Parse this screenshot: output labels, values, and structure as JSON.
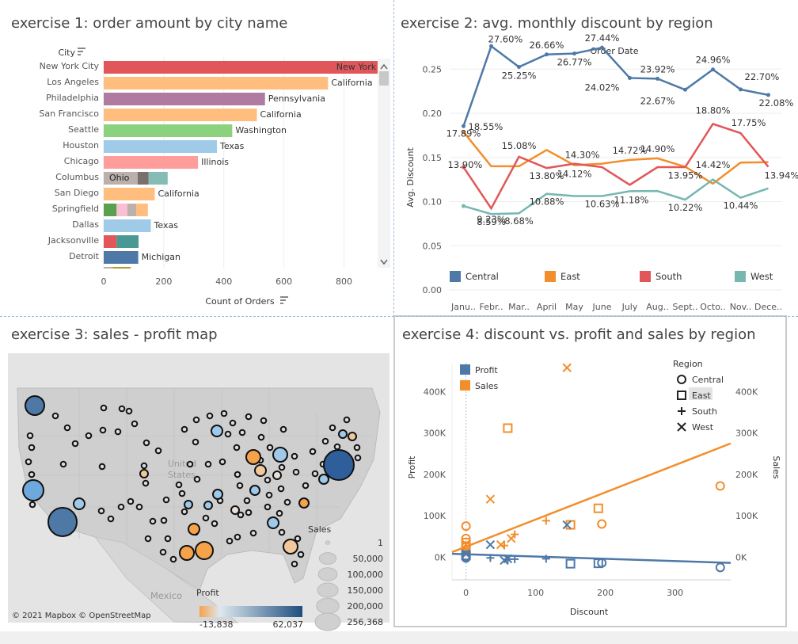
{
  "panels": {
    "p1_title": "exercise 1: order amount by city name",
    "p2_title": "exercise 2: avg. monthly discount by region",
    "p3_title": "exercise 3: sales - profit map",
    "p4_title": "exercise 4: discount vs. profit and sales by region"
  },
  "colors": {
    "central": "#4e79a7",
    "east": "#f28e2b",
    "south": "#e15759",
    "west": "#76b7b2",
    "divider": "#9bb8d6"
  },
  "icons": {
    "sort": "sort-icon",
    "scroll_up": "chevron-up-icon",
    "scroll_down": "chevron-down-icon"
  },
  "chart_data": [
    {
      "type": "bar",
      "orientation": "horizontal",
      "title": "exercise 1: order amount by city name",
      "header_label": "City",
      "xlabel": "Count of Orders",
      "xticks": [
        "0",
        "200",
        "400",
        "600",
        "800"
      ],
      "xlim": [
        0,
        920
      ],
      "categories": [
        "New York City",
        "Los Angeles",
        "Philadelphia",
        "San Francisco",
        "Seattle",
        "Houston",
        "Chicago",
        "Columbus",
        "San Diego",
        "Springfield",
        "Dallas",
        "Jacksonville",
        "Detroit"
      ],
      "bars": [
        {
          "city": "New York City",
          "segments": [
            {
              "value": 915,
              "color": "#e15759",
              "state": "New York"
            }
          ]
        },
        {
          "city": "Los Angeles",
          "segments": [
            {
              "value": 747,
              "color": "#ffbe7d",
              "state": "California"
            }
          ]
        },
        {
          "city": "Philadelphia",
          "segments": [
            {
              "value": 537,
              "color": "#b07aa1",
              "state": "Pennsylvania"
            }
          ]
        },
        {
          "city": "San Francisco",
          "segments": [
            {
              "value": 510,
              "color": "#ffbe7d",
              "state": "California"
            }
          ]
        },
        {
          "city": "Seattle",
          "segments": [
            {
              "value": 428,
              "color": "#8cd17d",
              "state": "Washington"
            }
          ]
        },
        {
          "city": "Houston",
          "segments": [
            {
              "value": 377,
              "color": "#a0cbe8",
              "state": "Texas"
            }
          ]
        },
        {
          "city": "Chicago",
          "segments": [
            {
              "value": 314,
              "color": "#ff9d9a",
              "state": "Illinois"
            }
          ]
        },
        {
          "city": "Columbus",
          "segments": [
            {
              "value": 113,
              "color": "#bab0ac",
              "state": "Ohio"
            },
            {
              "value": 36,
              "color": "#79706e",
              "state": ""
            },
            {
              "value": 64,
              "color": "#86bcb6",
              "state": ""
            }
          ]
        },
        {
          "city": "San Diego",
          "segments": [
            {
              "value": 170,
              "color": "#ffbe7d",
              "state": "California"
            }
          ]
        },
        {
          "city": "Springfield",
          "segments": [
            {
              "value": 43,
              "color": "#59a14f",
              "state": ""
            },
            {
              "value": 36,
              "color": "#fabfd2",
              "state": ""
            },
            {
              "value": 29,
              "color": "#bab0ac",
              "state": ""
            },
            {
              "value": 39,
              "color": "#ffbe7d",
              "state": ""
            }
          ]
        },
        {
          "city": "Dallas",
          "segments": [
            {
              "value": 157,
              "color": "#a0cbe8",
              "state": "Texas"
            }
          ]
        },
        {
          "city": "Jacksonville",
          "segments": [
            {
              "value": 43,
              "color": "#e15759",
              "state": ""
            },
            {
              "value": 73,
              "color": "#499894",
              "state": ""
            }
          ]
        },
        {
          "city": "Detroit",
          "segments": [
            {
              "value": 115,
              "color": "#4e79a7",
              "state": "Michigan"
            }
          ]
        }
      ]
    },
    {
      "type": "line",
      "title": "exercise 2: avg. monthly discount by region",
      "header_label": "Order Date",
      "ylabel": "Avg. Discount",
      "ylim": [
        0.0,
        0.27
      ],
      "yticks": [
        "0.00",
        "0.05",
        "0.10",
        "0.15",
        "0.20",
        "0.25"
      ],
      "categories": [
        "Janu..",
        "Febr..",
        "Mar..",
        "April",
        "May",
        "June",
        "July",
        "Aug..",
        "Sept..",
        "Octo..",
        "Nov..",
        "Dece.."
      ],
      "legend": [
        "Central",
        "East",
        "South",
        "West"
      ],
      "series": [
        {
          "name": "Central",
          "values": [
            0.1855,
            0.276,
            0.2525,
            0.2666,
            0.2677,
            0.2744,
            0.24,
            0.2392,
            0.2267,
            0.2496,
            0.227,
            0.2208
          ]
        },
        {
          "name": "East",
          "values": [
            0.1789,
            0.14,
            0.14,
            0.1585,
            0.1412,
            0.143,
            0.1472,
            0.149,
            0.1395,
            0.1203,
            0.1442,
            0.1446
          ]
        },
        {
          "name": "South",
          "values": [
            0.139,
            0.0923,
            0.1508,
            0.138,
            0.143,
            0.139,
            0.119,
            0.139,
            0.139,
            0.188,
            0.1775,
            0.1394
          ]
        },
        {
          "name": "West",
          "values": [
            0.095,
            0.0859,
            0.0868,
            0.1088,
            0.1063,
            0.1063,
            0.1118,
            0.112,
            0.1022,
            0.125,
            0.1044,
            0.115
          ]
        }
      ],
      "point_labels": [
        "18.55%",
        "27.60%",
        "25.25%",
        "26.66%",
        "26.77%",
        "27.44%",
        "24.02%",
        "23.92%",
        "22.67%",
        "24.96%",
        "22.70%",
        "22.08%",
        "17.89%",
        "13.90%",
        "15.08%",
        "9.23%",
        "14.30%",
        "14.12%",
        "14.72%",
        "14.90%",
        "13.95%",
        "18.80%",
        "17.75%",
        "14.42%",
        "13.94%",
        "13.80%",
        "8.59%",
        "8.68%",
        "10.88%",
        "10.63%",
        "11.18%",
        "10.22%",
        "10.44%"
      ]
    },
    {
      "type": "scatter",
      "subtype": "symbol-map",
      "title": "exercise 3: sales - profit map",
      "map_labels": {
        "country": "United\nStates",
        "mexico": "Mexico",
        "credit": "© 2021 Mapbox © OpenStreetMap"
      },
      "profit_legend": {
        "title": "Profit",
        "min": "-13,838",
        "max": "62,037"
      },
      "sales_legend": {
        "title": "Sales",
        "values": [
          "1",
          "50,000",
          "100,000",
          "150,000",
          "200,000",
          "256,368"
        ]
      }
    },
    {
      "type": "scatter",
      "title": "exercise 4: discount vs. profit and sales by region",
      "xlabel": "Discount",
      "ylabel": "Profit",
      "y2label": "Sales",
      "xlim": [
        -20,
        380
      ],
      "xticks": [
        "0",
        "100",
        "200",
        "300"
      ],
      "yticks": [
        "0K",
        "100K",
        "200K",
        "300K",
        "400K"
      ],
      "ylim": [
        -55000,
        470000
      ],
      "legend_measures": [
        "Profit",
        "Sales"
      ],
      "legend_region_title": "Region",
      "legend_regions": [
        "Central",
        "East",
        "South",
        "West"
      ],
      "profit_points": [
        {
          "region": "Central",
          "x": 0,
          "y": 3000
        },
        {
          "region": "Central",
          "x": 0,
          "y": 1000
        },
        {
          "region": "Central",
          "x": 0,
          "y": -2000
        },
        {
          "region": "Central",
          "x": 195,
          "y": -14000
        },
        {
          "region": "Central",
          "x": 365,
          "y": -25000
        },
        {
          "region": "East",
          "x": 0,
          "y": 4000
        },
        {
          "region": "East",
          "x": 150,
          "y": -16000
        },
        {
          "region": "East",
          "x": 190,
          "y": -15000
        },
        {
          "region": "South",
          "x": 35,
          "y": -2000
        },
        {
          "region": "South",
          "x": 60,
          "y": -5000
        },
        {
          "region": "South",
          "x": 70,
          "y": -5000
        },
        {
          "region": "South",
          "x": 115,
          "y": -4000
        },
        {
          "region": "West",
          "x": 0,
          "y": 8000
        },
        {
          "region": "West",
          "x": 35,
          "y": 30000
        },
        {
          "region": "West",
          "x": 55,
          "y": -8000
        },
        {
          "region": "West",
          "x": 60,
          "y": -4000
        },
        {
          "region": "West",
          "x": 145,
          "y": 78000
        }
      ],
      "sales_points": [
        {
          "region": "Central",
          "x": 0,
          "y": 75000
        },
        {
          "region": "Central",
          "x": 0,
          "y": 45000
        },
        {
          "region": "Central",
          "x": 0,
          "y": 25000
        },
        {
          "region": "Central",
          "x": 195,
          "y": 80000
        },
        {
          "region": "Central",
          "x": 365,
          "y": 172000
        },
        {
          "region": "East",
          "x": 0,
          "y": 35000
        },
        {
          "region": "East",
          "x": 0,
          "y": 15000
        },
        {
          "region": "East",
          "x": 60,
          "y": 312000
        },
        {
          "region": "East",
          "x": 150,
          "y": 78000
        },
        {
          "region": "East",
          "x": 190,
          "y": 118000
        },
        {
          "region": "South",
          "x": 0,
          "y": 20000
        },
        {
          "region": "South",
          "x": 55,
          "y": 28000
        },
        {
          "region": "South",
          "x": 70,
          "y": 55000
        },
        {
          "region": "South",
          "x": 115,
          "y": 88000
        },
        {
          "region": "West",
          "x": 0,
          "y": 30000
        },
        {
          "region": "West",
          "x": 35,
          "y": 140000
        },
        {
          "region": "West",
          "x": 50,
          "y": 30000
        },
        {
          "region": "West",
          "x": 65,
          "y": 45000
        },
        {
          "region": "West",
          "x": 145,
          "y": 458000
        }
      ],
      "trend_lines": [
        {
          "series": "Profit",
          "x": [
            -20,
            380
          ],
          "y": [
            8000,
            -14000
          ]
        },
        {
          "series": "Sales",
          "x": [
            -20,
            380
          ],
          "y": [
            12000,
            275000
          ]
        }
      ]
    }
  ]
}
